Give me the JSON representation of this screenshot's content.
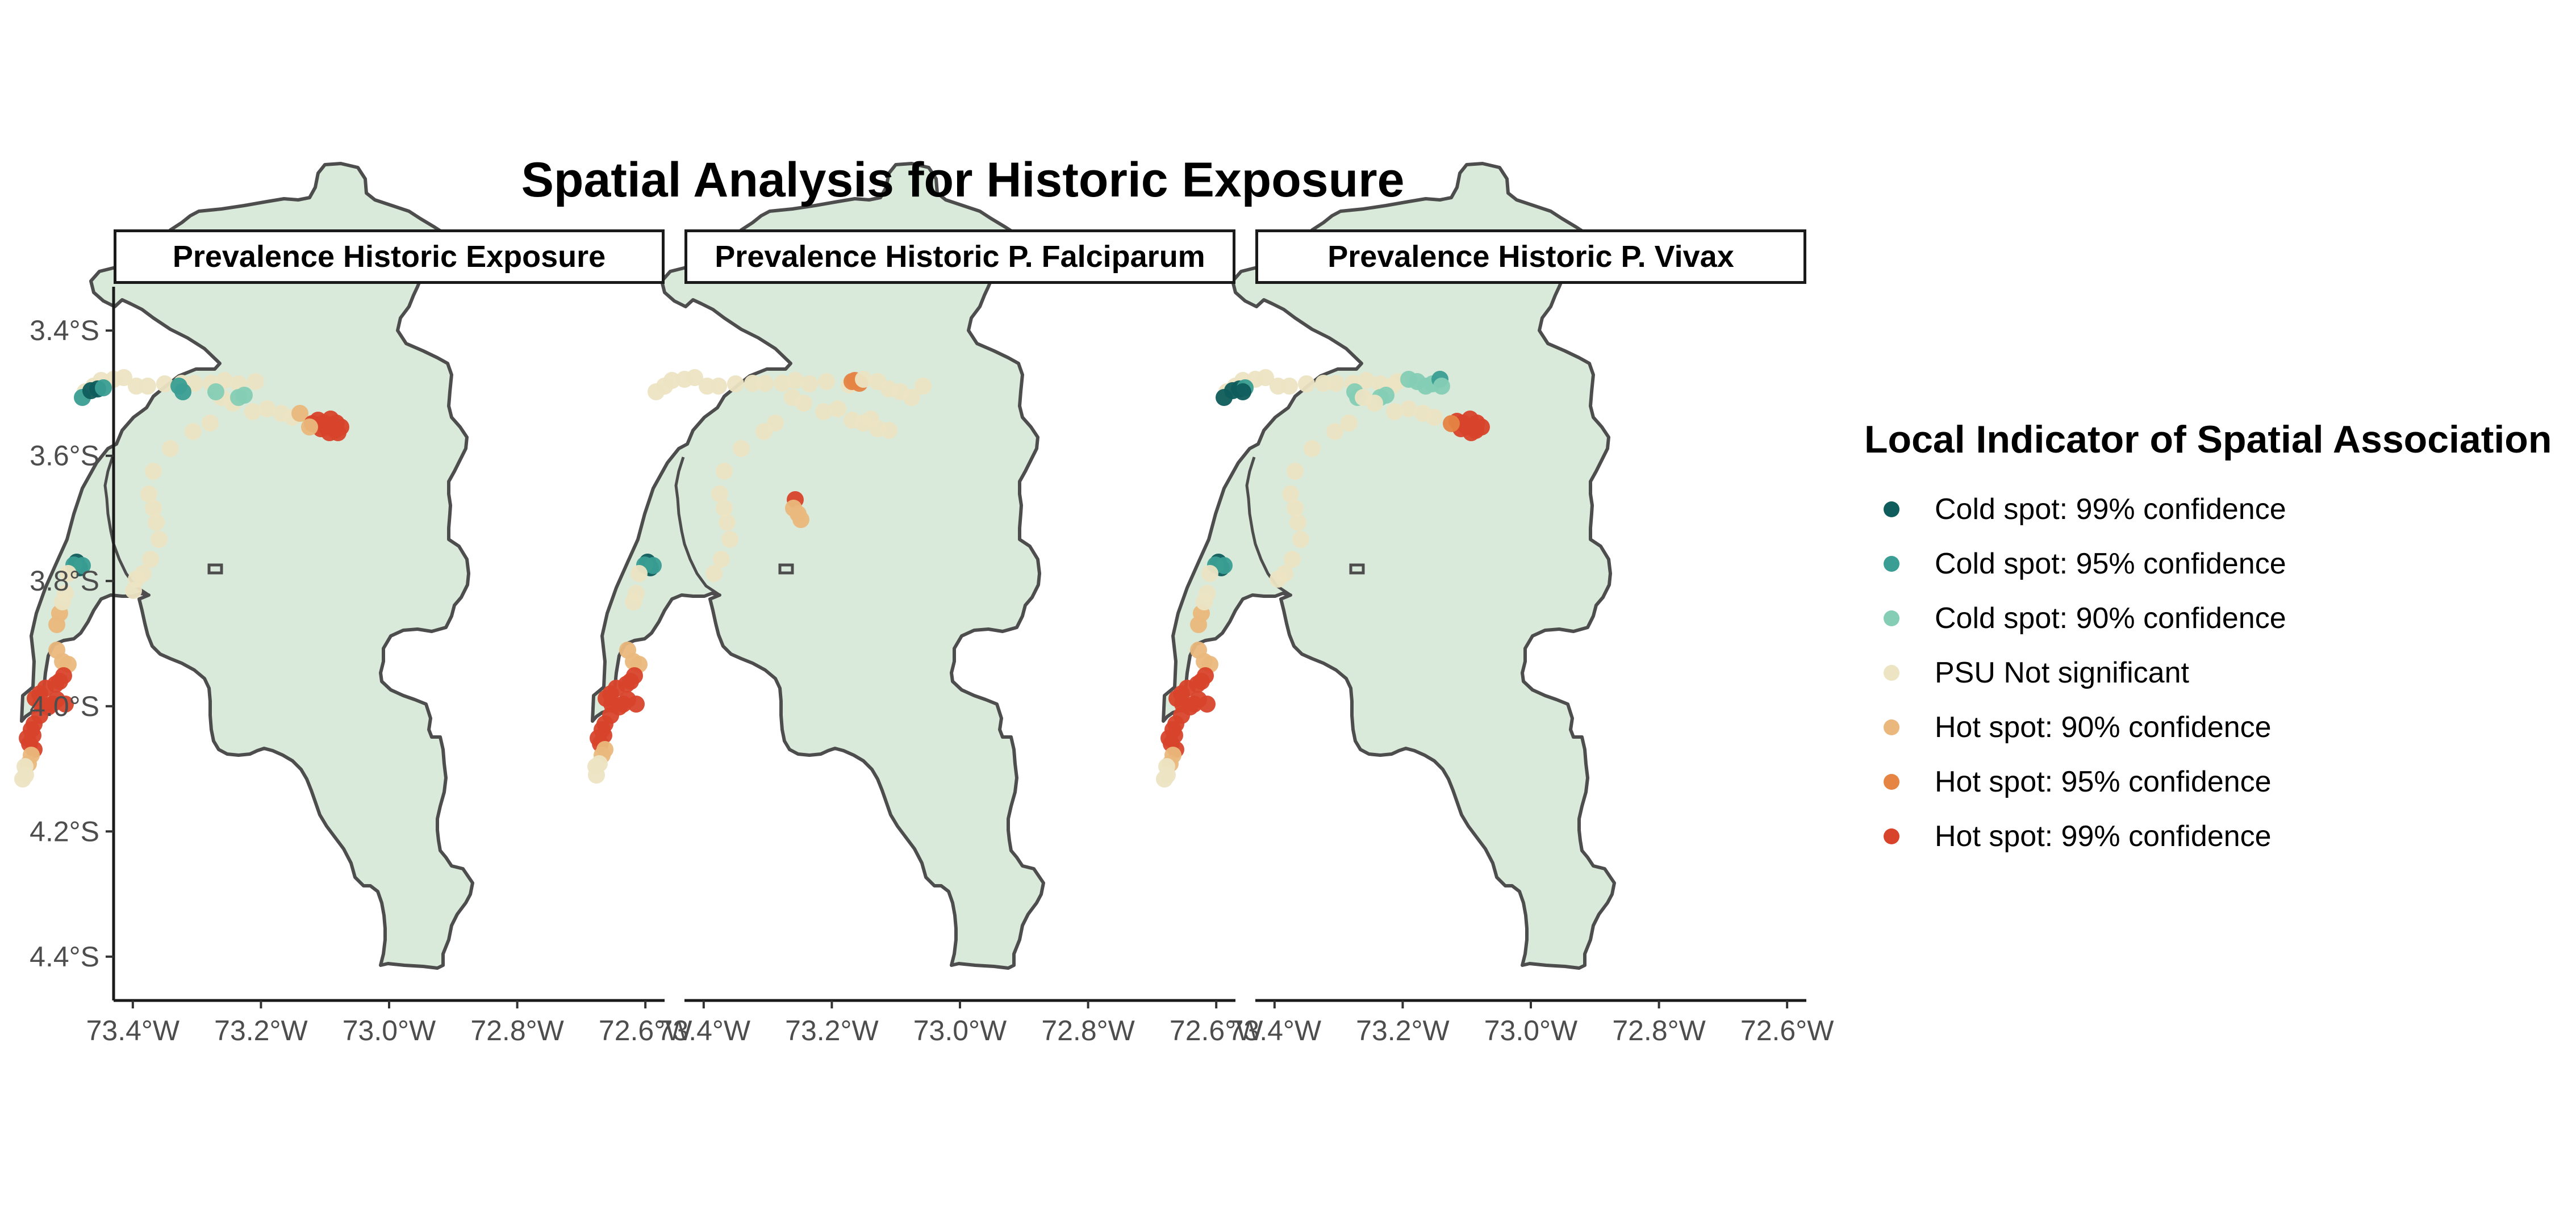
{
  "title": "Spatial Analysis for Historic Exposure",
  "panels": [
    {
      "title": "Prevalence Historic Exposure"
    },
    {
      "title": "Prevalence Historic P. Falciparum"
    },
    {
      "title": "Prevalence Historic P. Vivax"
    }
  ],
  "axes": {
    "y_ticks": [
      {
        "label": "3.4°S",
        "lat": -3.4
      },
      {
        "label": "3.6°S",
        "lat": -3.6
      },
      {
        "label": "3.8°S",
        "lat": -3.8
      },
      {
        "label": "4.0°S",
        "lat": -4.0
      },
      {
        "label": "4.2°S",
        "lat": -4.2
      },
      {
        "label": "4.4°S",
        "lat": -4.4
      }
    ],
    "x_ticks_by_panel": [
      [
        "73.4°W",
        "73.2°W",
        "73.0°W",
        "72.8°W",
        "72.6°W"
      ],
      [
        "73.4°W",
        "73.2°W",
        "73.0°W",
        "72.8°W",
        "72.6°W"
      ],
      [
        "73.4°W",
        "73.2°W",
        "73.0°W",
        "72.8°W",
        "72.6°W"
      ]
    ],
    "x_tick_lons": [
      -73.4,
      -73.2,
      -73.0,
      -72.8,
      -72.6
    ],
    "lon_range": [
      -73.43,
      -72.57
    ],
    "lat_range": [
      -4.47,
      -3.33
    ]
  },
  "legend": {
    "title": "Local Indicator of Spatial Association",
    "items": [
      {
        "label": "Cold spot: 99% confidence",
        "color": "#0f5c5c"
      },
      {
        "label": "Cold spot: 95% confidence",
        "color": "#3a9e94"
      },
      {
        "label": "Cold spot: 90% confidence",
        "color": "#85cdb5"
      },
      {
        "label": "PSU Not significant",
        "color": "#ece4c3"
      },
      {
        "label": "Hot spot: 90% confidence",
        "color": "#eab87c"
      },
      {
        "label": "Hot spot: 95% confidence",
        "color": "#e58443"
      },
      {
        "label": "Hot spot: 99% confidence",
        "color": "#d8432b"
      }
    ]
  },
  "region_fill": "#d9eada",
  "region_stroke": "#4d4d4d"
}
